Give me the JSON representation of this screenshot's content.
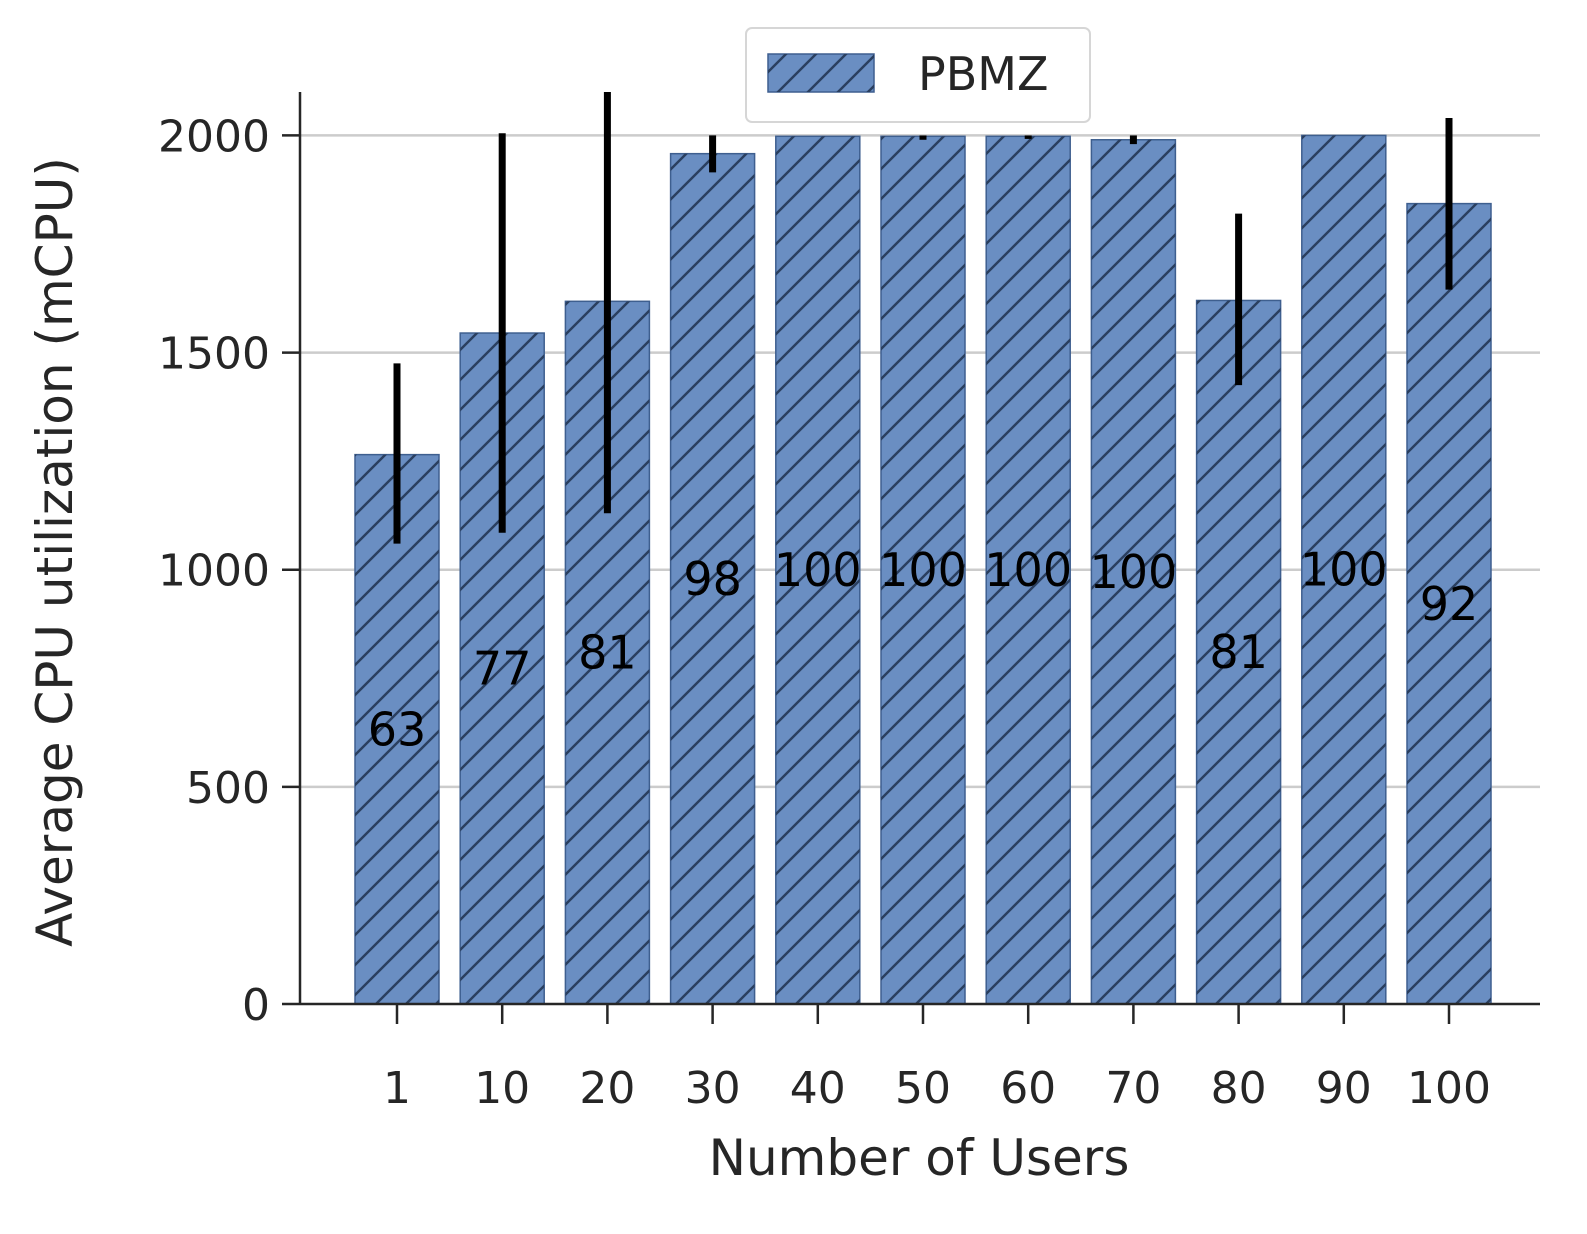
{
  "chart_data": {
    "type": "bar",
    "title": "",
    "xlabel": "Number of Users",
    "ylabel": "Average CPU utilization (mCPU)",
    "categories": [
      "1",
      "10",
      "20",
      "30",
      "40",
      "50",
      "60",
      "70",
      "80",
      "90",
      "100"
    ],
    "series": [
      {
        "name": "PBMZ",
        "values": [
          1265,
          1545,
          1618,
          1958,
          1998,
          1998,
          1998,
          1990,
          1620,
          2000,
          1843
        ],
        "error_low": [
          1060,
          1085,
          1130,
          1915,
          1998,
          1990,
          1992,
          1980,
          1425,
          2000,
          1645
        ],
        "error_high": [
          1475,
          2005,
          2100,
          2000,
          1998,
          2000,
          2000,
          2000,
          1820,
          2000,
          2040
        ],
        "labels": [
          "63",
          "77",
          "81",
          "98",
          "100",
          "100",
          "100",
          "100",
          "81",
          "100",
          "92"
        ],
        "color": "#6a8ec2",
        "hatch": "diagonal"
      }
    ],
    "ylim": [
      0,
      2100
    ],
    "yticks": [
      0,
      500,
      1000,
      1500,
      2000
    ],
    "grid": true,
    "legend_position": "top-center"
  }
}
